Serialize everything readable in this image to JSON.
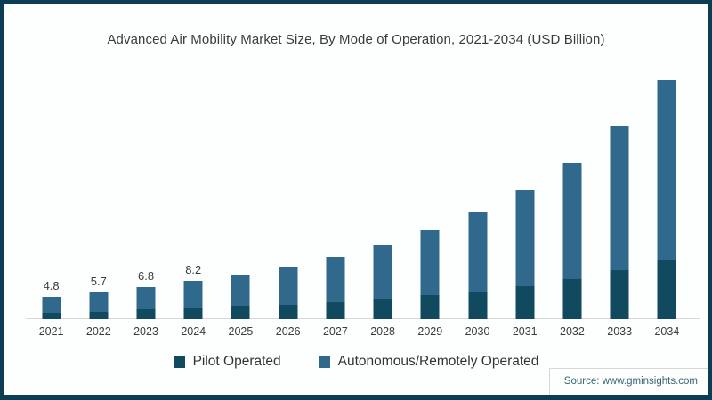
{
  "chart_data": {
    "type": "bar",
    "stacked": true,
    "title": "Advanced Air Mobility Market Size, By Mode of Operation, 2021-2034 (USD Billion)",
    "categories": [
      "2021",
      "2022",
      "2023",
      "2024",
      "2025",
      "2026",
      "2027",
      "2028",
      "2029",
      "2030",
      "2031",
      "2032",
      "2033",
      "2034"
    ],
    "series": [
      {
        "name": "Pilot Operated",
        "color": "#114a5f",
        "values": [
          1.4,
          1.6,
          2.1,
          2.4,
          2.8,
          3.1,
          3.7,
          4.4,
          5.1,
          5.9,
          7.0,
          8.5,
          10.4,
          12.5
        ]
      },
      {
        "name": "Autonomous/Remotely Operated",
        "color": "#31698c",
        "values": [
          3.4,
          4.1,
          4.7,
          5.8,
          6.7,
          8.1,
          9.6,
          11.4,
          13.9,
          16.9,
          20.6,
          25.1,
          30.9,
          38.8
        ]
      }
    ],
    "totals": [
      4.8,
      5.7,
      6.8,
      8.2,
      9.5,
      11.2,
      13.3,
      15.8,
      19.0,
      22.8,
      27.6,
      33.6,
      41.3,
      51.3
    ],
    "total_labels": [
      "4.8",
      "5.7",
      "6.8",
      "8.2",
      "",
      "",
      "",
      "",
      "",
      "",
      "",
      "",
      "",
      ""
    ],
    "xlabel": "",
    "ylabel": "",
    "ylim": [
      0,
      55
    ],
    "grid": false,
    "legend_position": "bottom",
    "axis_line_color": "#d9d9d9"
  },
  "source": {
    "label": "Source: www.gminsights.com"
  },
  "colors": {
    "frame_border": "#0d3d53",
    "background": "#fdfefe",
    "title_text": "#3b3b3b",
    "tick_text": "#3b3b3b",
    "source_text": "#3a6473"
  }
}
